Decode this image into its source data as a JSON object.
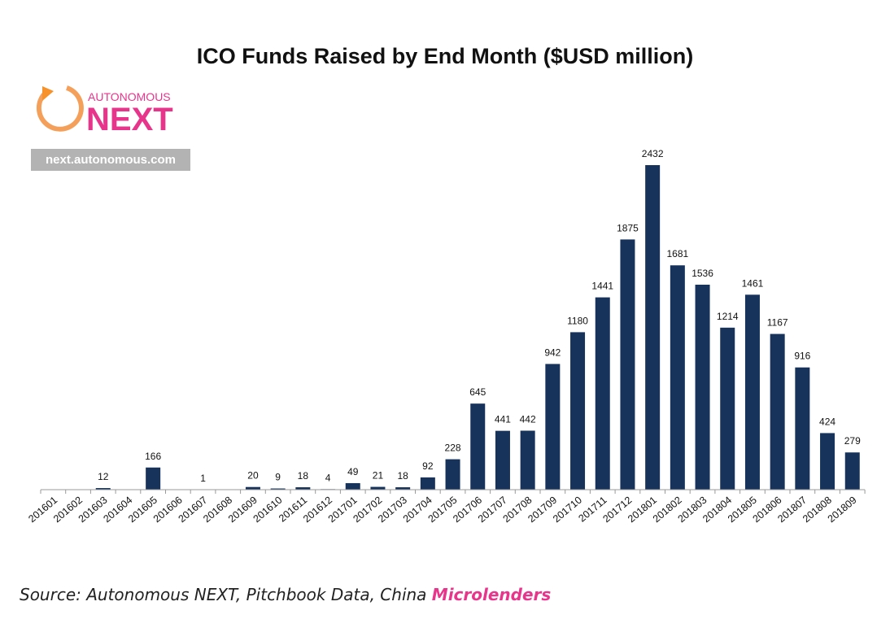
{
  "colors": {
    "bar": "#17335c",
    "accent": "#e8358c",
    "logo_gray": "#b3b3b3"
  },
  "logo": {
    "small_text": "AUTONOMOUS",
    "big_text": "NEXT",
    "url": "next.autonomous.com",
    "icon": "circular-arrow-icon"
  },
  "source": {
    "prefix": "Source: Autonomous NEXT, Pitchbook Data, China ",
    "highlight": "Microlenders"
  },
  "chart_data": {
    "type": "bar",
    "title": "ICO Funds Raised by End Month ($USD million)",
    "xlabel": "",
    "ylabel": "",
    "ylim": [
      0,
      2700
    ],
    "grid": false,
    "categories": [
      "201601",
      "201602",
      "201603",
      "201604",
      "201605",
      "201606",
      "201607",
      "201608",
      "201609",
      "201610",
      "201611",
      "201612",
      "201701",
      "201702",
      "201703",
      "201704",
      "201705",
      "201706",
      "201707",
      "201708",
      "201709",
      "201710",
      "201711",
      "201712",
      "201801",
      "201802",
      "201803",
      "201804",
      "201805",
      "201806",
      "201807",
      "201808",
      "201809"
    ],
    "values": [
      null,
      null,
      12,
      null,
      166,
      null,
      1,
      null,
      20,
      9,
      18,
      4,
      49,
      21,
      18,
      92,
      228,
      645,
      441,
      442,
      942,
      1180,
      1441,
      1875,
      2432,
      1681,
      1536,
      1214,
      1461,
      1167,
      916,
      424,
      279
    ],
    "labels": [
      "",
      "",
      "12",
      "",
      "166",
      "",
      "1",
      "",
      "20",
      "9",
      "18",
      "4",
      "49",
      "21",
      "18",
      "92",
      "228",
      "645",
      "441",
      "442",
      "942",
      "1180",
      "1441",
      "1875",
      "2432",
      "1681",
      "1536",
      "1214",
      "1461",
      "1167",
      "916",
      "424",
      "279"
    ]
  }
}
